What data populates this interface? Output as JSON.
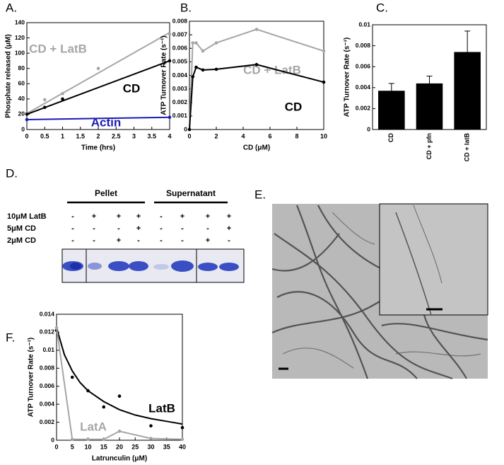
{
  "chart_data": [
    {
      "type": "scatter",
      "label": "A.",
      "xlabel": "Time (hrs)",
      "ylabel": "Phosphate released (μM)",
      "xlim": [
        0,
        4
      ],
      "xticks": [
        0,
        0.5,
        1,
        1.5,
        2,
        2.5,
        3,
        3.5,
        4
      ],
      "ylim": [
        0,
        140
      ],
      "yticks": [
        0,
        20,
        40,
        60,
        80,
        100,
        120,
        140
      ],
      "series": [
        {
          "name": "CD + LatB",
          "color": "#a6a6a6",
          "x": [
            0,
            0.5,
            1,
            2,
            4
          ],
          "values": [
            22,
            39,
            47,
            80,
            125
          ],
          "fit": {
            "x": [
              0,
              4
            ],
            "values": [
              21,
              127
            ]
          }
        },
        {
          "name": "CD",
          "color": "#000000",
          "x": [
            0,
            0.5,
            1,
            4
          ],
          "values": [
            20,
            29,
            40,
            90
          ],
          "fit": {
            "x": [
              0,
              4
            ],
            "values": [
              20,
              90
            ]
          }
        },
        {
          "name": "Actin",
          "color": "#1a1ab4",
          "x": [
            0,
            4
          ],
          "values": [
            13,
            16
          ],
          "fit": {
            "x": [
              0,
              4
            ],
            "values": [
              13,
              16
            ]
          }
        }
      ]
    },
    {
      "type": "line",
      "label": "B.",
      "xlabel": "CD (μM)",
      "ylabel": "ATP Turnover Rate (s⁻¹)",
      "xlim": [
        0,
        10
      ],
      "xticks": [
        0,
        2,
        4,
        6,
        8,
        10
      ],
      "ylim": [
        0,
        0.008
      ],
      "yticks": [
        0,
        0.001,
        0.002,
        0.003,
        0.004,
        0.005,
        0.006,
        0.007,
        0.008
      ],
      "series": [
        {
          "name": "CD + LatB",
          "color": "#a6a6a6",
          "x": [
            0,
            0.25,
            0.5,
            1,
            2,
            5,
            10
          ],
          "values": [
            0,
            0.0064,
            0.0064,
            0.0058,
            0.0064,
            0.0074,
            0.0058
          ]
        },
        {
          "name": "CD",
          "color": "#000000",
          "x": [
            0,
            0.25,
            0.5,
            1,
            2,
            5,
            10
          ],
          "values": [
            0,
            0.0039,
            0.0046,
            0.0044,
            0.00445,
            0.0048,
            0.0035
          ]
        }
      ]
    },
    {
      "type": "bar",
      "label": "C.",
      "ylabel": "ATP Turnover Rate (s⁻¹)",
      "categories": [
        "CD",
        "CD + pfn",
        "CD + latB"
      ],
      "values": [
        0.0037,
        0.0044,
        0.0074
      ],
      "errors": [
        0.0007,
        0.0007,
        0.002
      ],
      "color": "#000000",
      "ylim": [
        0,
        0.01
      ],
      "yticks": [
        0,
        0.002,
        0.004,
        0.006,
        0.008,
        0.01
      ]
    },
    {
      "type": "scatter",
      "label": "F.",
      "xlabel": "Latrunculin (μM)",
      "ylabel": "ATP Turnover Rate (s⁻¹)",
      "xlim": [
        0,
        40
      ],
      "xticks": [
        0,
        5,
        10,
        15,
        20,
        25,
        30,
        35,
        40
      ],
      "ylim": [
        0,
        0.014
      ],
      "yticks": [
        0,
        0.002,
        0.004,
        0.006,
        0.008,
        0.01,
        0.012,
        0.014
      ],
      "series": [
        {
          "name": "LatB",
          "color": "#000000",
          "x": [
            0,
            5,
            10,
            15,
            20,
            30,
            40
          ],
          "values": [
            0.0122,
            0.007,
            0.0055,
            0.0037,
            0.0049,
            0.0016,
            0.0014
          ],
          "fit": {
            "x": [
              0,
              2.5,
              5,
              7.5,
              10,
              15,
              20,
              25,
              30,
              35,
              40
            ],
            "values": [
              0.0125,
              0.0095,
              0.0077,
              0.0064,
              0.0055,
              0.0043,
              0.0034,
              0.0028,
              0.0024,
              0.0021,
              0.0018
            ]
          }
        },
        {
          "name": "LatA",
          "color": "#a6a6a6",
          "x": [
            0,
            5,
            10,
            15,
            20,
            30,
            40
          ],
          "values": [
            0.0125,
            0.0001,
            0.0001,
            0.0001,
            0.001,
            0.0002,
            0.0001
          ]
        }
      ]
    }
  ],
  "gel": {
    "label": "D.",
    "groups": [
      "Pellet",
      "Supernatant"
    ],
    "rows": [
      {
        "name": "10μM LatB",
        "signs": [
          "-",
          "+",
          "+",
          "+",
          "-",
          "+",
          "+",
          "+"
        ]
      },
      {
        "name": "5μM CD",
        "signs": [
          "-",
          "-",
          "-",
          "+",
          "-",
          "-",
          "-",
          "+"
        ]
      },
      {
        "name": "2μM CD",
        "signs": [
          "-",
          "-",
          "+",
          "-",
          "-",
          "-",
          "+",
          "-"
        ]
      }
    ]
  },
  "micrograph": {
    "label": "E."
  }
}
